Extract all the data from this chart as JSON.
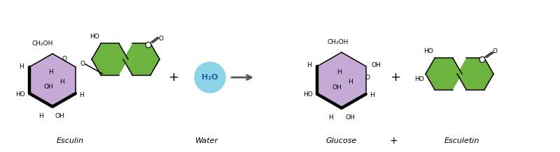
{
  "bg_color": "#ffffff",
  "purple_color": "#c4aad4",
  "green_color": "#6db33f",
  "cyan_bg": "#8dd4e8",
  "text_color": "#000000",
  "label_esculin": "Esculin",
  "label_water": "Water",
  "label_glucose": "Glucose",
  "label_esculetin": "Esculetin",
  "water_formula": "H₂O",
  "figsize": [
    8.0,
    2.18
  ],
  "dpi": 100
}
